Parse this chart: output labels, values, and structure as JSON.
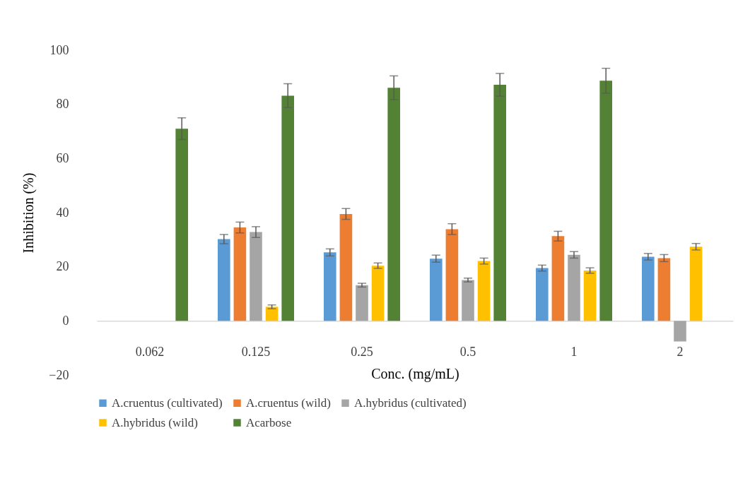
{
  "chart_data": {
    "type": "bar",
    "xlabel": "Conc. (mg/mL)",
    "ylabel": "Inhibition (%)",
    "categories": [
      "0.062",
      "0.125",
      "0.25",
      "0.5",
      "1",
      "2"
    ],
    "series": [
      {
        "name": "A.cruentus (cultivated)",
        "color": "#5b9bd5",
        "values": [
          null,
          30.2,
          25.3,
          23.0,
          19.5,
          23.7
        ],
        "errors": [
          null,
          1.7,
          1.3,
          1.3,
          1.1,
          1.2
        ]
      },
      {
        "name": "A.cruentus (wild)",
        "color": "#ed7d31",
        "values": [
          null,
          34.5,
          39.5,
          33.9,
          31.3,
          23.2
        ],
        "errors": [
          null,
          2,
          2,
          2,
          1.8,
          1.3
        ]
      },
      {
        "name": "A.hybridus (cultivated)",
        "color": "#a5a5a5",
        "values": [
          null,
          32.8,
          13.2,
          15.1,
          24.4,
          -7.6
        ],
        "errors": [
          null,
          2,
          0.7,
          0.7,
          1.2,
          null
        ]
      },
      {
        "name": "A.hybridus (wild)",
        "color": "#ffc000",
        "values": [
          null,
          5.2,
          20.4,
          22.1,
          18.6,
          27.4
        ],
        "errors": [
          null,
          0.7,
          1,
          1.1,
          1,
          1.2
        ]
      },
      {
        "name": "Acarbose",
        "color": "#548235",
        "values": [
          71.0,
          83.2,
          86.1,
          87.2,
          88.7,
          null
        ],
        "errors": [
          4,
          4.4,
          4.4,
          4.2,
          4.6,
          null
        ]
      }
    ],
    "ylim": [
      -20,
      100
    ],
    "yticks": [
      -20,
      0,
      20,
      40,
      60,
      80,
      100
    ],
    "grid": false,
    "legend": "bottom"
  }
}
